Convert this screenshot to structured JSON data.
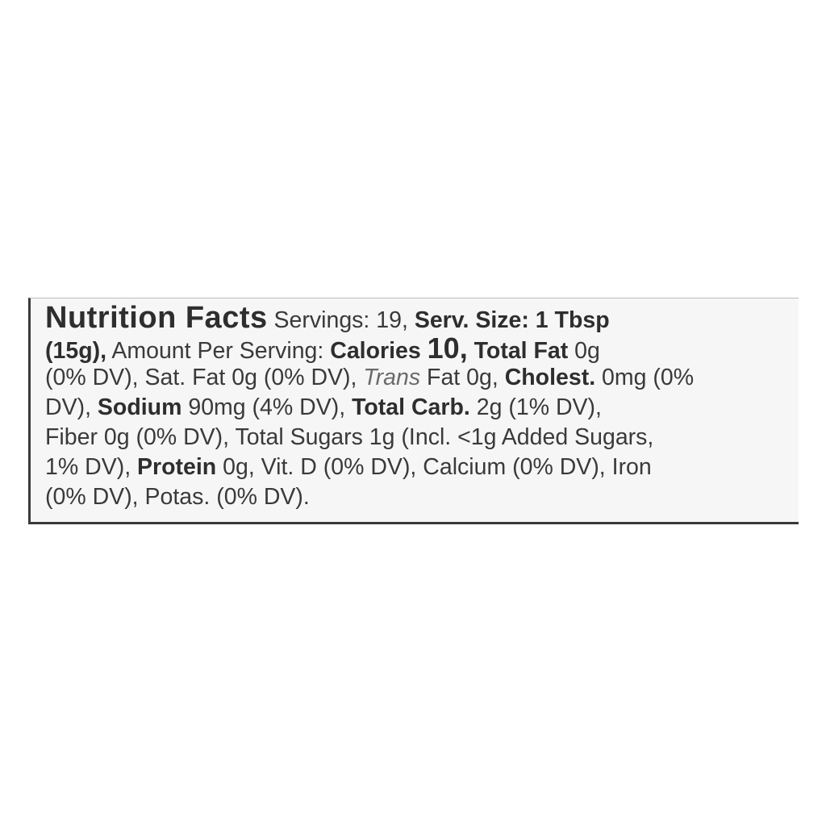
{
  "label": {
    "l1": {
      "title": "Nutrition Facts",
      "a": " Servings: 19, ",
      "b": "Serv. Size: 1 Tbsp"
    },
    "l2": {
      "a": "(15g),",
      "b": " Amount Per Serving: ",
      "c": "Calories",
      "d": "10,",
      "e": "Total Fat",
      "f": " 0g"
    },
    "l3": {
      "a": "(0% DV), Sat. Fat 0g (0% DV), ",
      "b": "Trans",
      "c": " Fat 0g, ",
      "d": "Cholest.",
      "e": " 0mg (0%"
    },
    "l4": {
      "a": "DV), ",
      "b": "Sodium",
      "c": " 90mg (4% DV), ",
      "d": "Total Carb.",
      "e": " 2g (1% DV),"
    },
    "l5": {
      "a": "Fiber 0g (0% DV), Total Sugars 1g (Incl. <1g Added Sugars,"
    },
    "l6": {
      "a": "1% DV), ",
      "b": "Protein",
      "c": " 0g, Vit. D (0% DV), Calcium (0% DV), Iron"
    },
    "l7": {
      "a": "(0% DV), Potas. (0% DV)."
    }
  }
}
